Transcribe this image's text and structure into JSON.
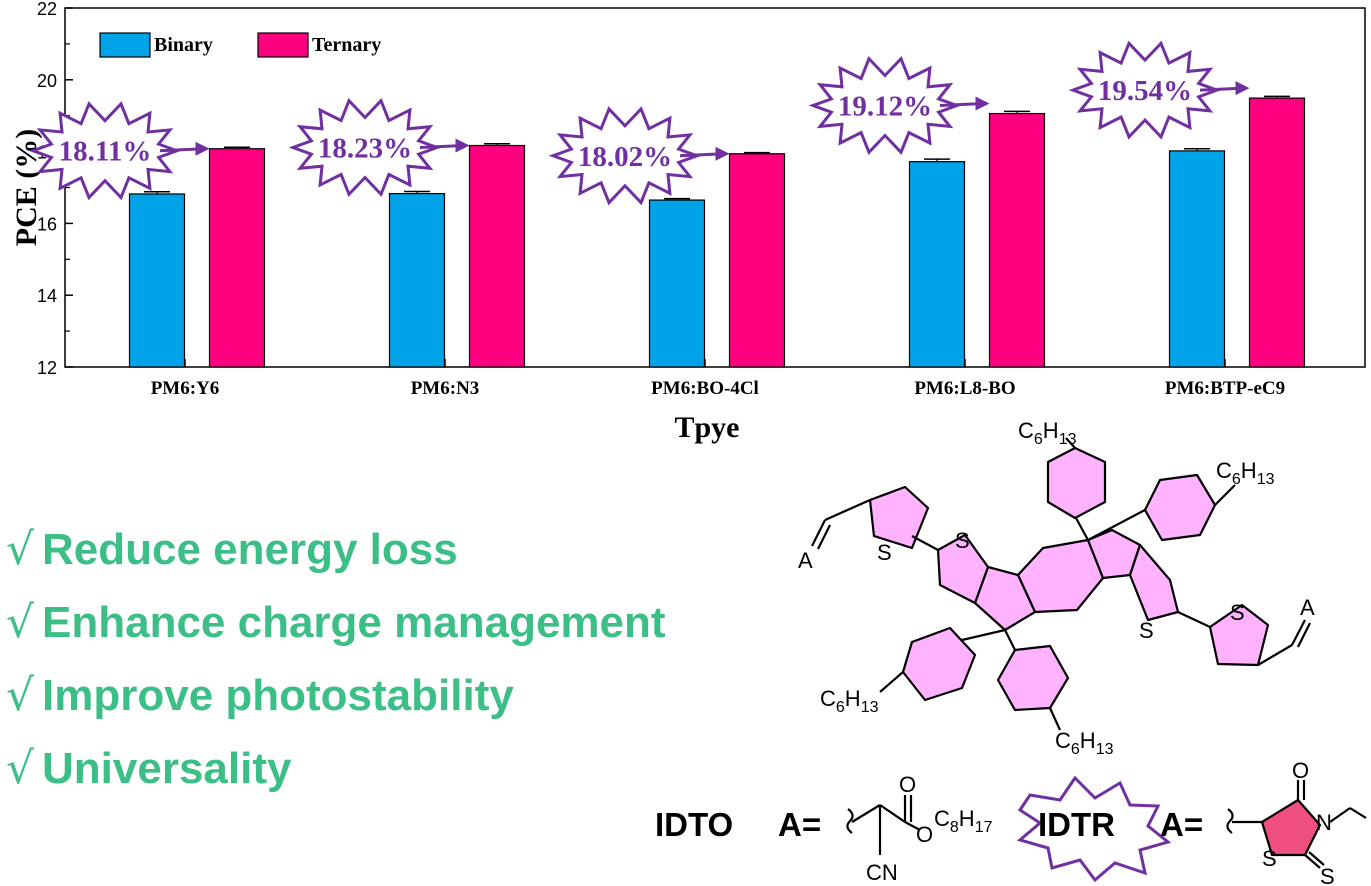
{
  "chart_data": {
    "type": "bar",
    "ylabel": "PCE (%)",
    "xlabel": "Tpye",
    "ylim": [
      12,
      22
    ],
    "yticks": [
      "12",
      "14",
      "16",
      "18",
      "20",
      "22"
    ],
    "categories": [
      "PM6:Y6",
      "PM6:N3",
      "PM6:BO-4Cl",
      "PM6:L8-BO",
      "PM6:BTP-eC9"
    ],
    "series": [
      {
        "name": "Binary",
        "color": "#00a2e8",
        "values": [
          16.82,
          16.83,
          16.65,
          17.72,
          18.02
        ],
        "errors": [
          0.06,
          0.06,
          0.04,
          0.07,
          0.06
        ]
      },
      {
        "name": "Ternary",
        "color": "#ff0080",
        "values": [
          18.08,
          18.17,
          17.94,
          19.06,
          19.49
        ],
        "errors": [
          0.04,
          0.05,
          0.03,
          0.06,
          0.05
        ]
      }
    ],
    "annotations": [
      "18.11%",
      "18.23%",
      "18.02%",
      "19.12%",
      "19.54%"
    ],
    "annotation_color": "#7030a0",
    "legend": "top-left"
  },
  "bullets": {
    "color": "#3cbf86",
    "check": "√",
    "items": [
      "Reduce energy loss",
      "Enhance charge management",
      "Improve photostability",
      "Universality"
    ]
  },
  "structure": {
    "ring_fill": "#ffb3ff",
    "rhodanine_fill": "#f0507f",
    "chain_label": "C6H13",
    "chain_c": "C",
    "chain_sub1": "6",
    "chain_h": "H",
    "chain_sub2": "13",
    "s_label": "S",
    "acceptor_label": "A",
    "idto_label": "IDTO",
    "idtr_label": "IDTR",
    "a_eq": "A=",
    "o_label": "O",
    "n_label": "N",
    "cn_label": "CN",
    "c8h17_label": "C8H17",
    "c8_c": "C",
    "c8_sub1": "8",
    "c8_h": "H",
    "c8_sub2": "17"
  }
}
